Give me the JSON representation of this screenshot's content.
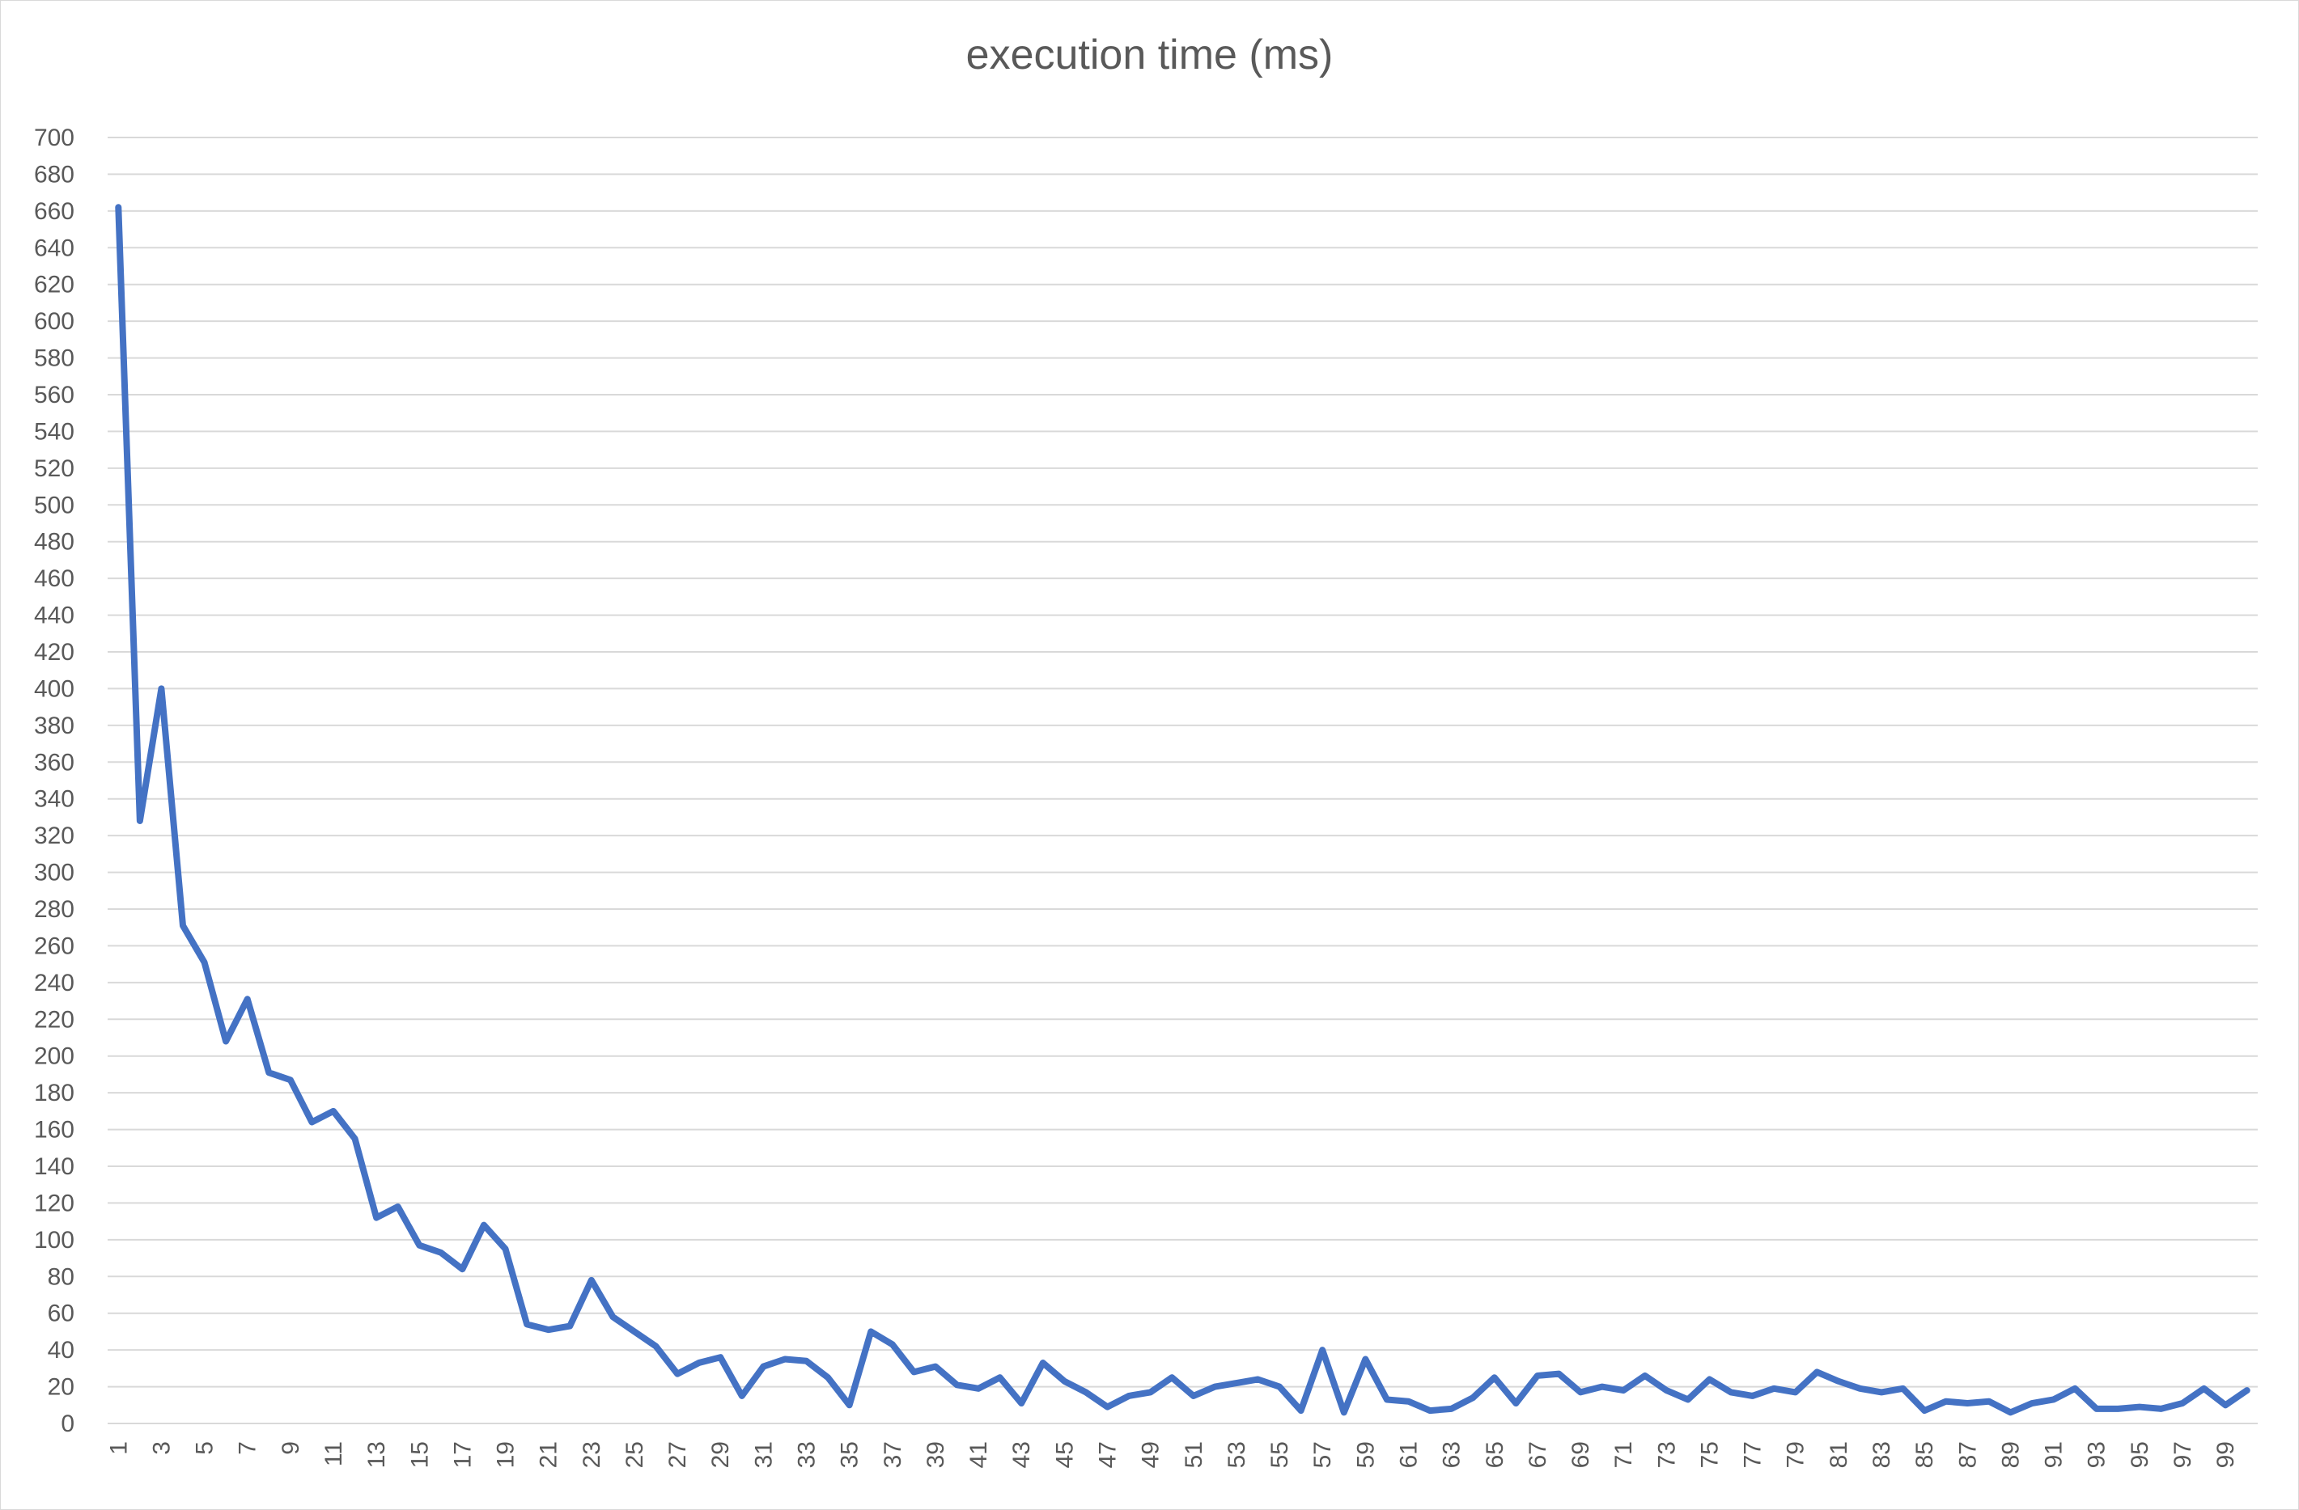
{
  "chart_data": {
    "type": "line",
    "title": "execution time (ms)",
    "xlabel": "",
    "ylabel": "",
    "ylim": [
      0,
      700
    ],
    "y_tick_step": 20,
    "x": [
      1,
      2,
      3,
      4,
      5,
      6,
      7,
      8,
      9,
      10,
      11,
      12,
      13,
      14,
      15,
      16,
      17,
      18,
      19,
      20,
      21,
      22,
      23,
      24,
      25,
      26,
      27,
      28,
      29,
      30,
      31,
      32,
      33,
      34,
      35,
      36,
      37,
      38,
      39,
      40,
      41,
      42,
      43,
      44,
      45,
      46,
      47,
      48,
      49,
      50,
      51,
      52,
      53,
      54,
      55,
      56,
      57,
      58,
      59,
      60,
      61,
      62,
      63,
      64,
      65,
      66,
      67,
      68,
      69,
      70,
      71,
      72,
      73,
      74,
      75,
      76,
      77,
      78,
      79,
      80,
      81,
      82,
      83,
      84,
      85,
      86,
      87,
      88,
      89,
      90,
      91,
      92,
      93,
      94,
      95,
      96,
      97,
      98,
      99,
      100
    ],
    "x_tick_labels": [
      "1",
      "3",
      "5",
      "7",
      "9",
      "11",
      "13",
      "15",
      "17",
      "19",
      "21",
      "23",
      "25",
      "27",
      "29",
      "31",
      "33",
      "35",
      "37",
      "39",
      "41",
      "43",
      "45",
      "47",
      "49",
      "51",
      "53",
      "55",
      "57",
      "59",
      "61",
      "63",
      "65",
      "67",
      "69",
      "71",
      "73",
      "75",
      "77",
      "79",
      "81",
      "83",
      "85",
      "87",
      "89",
      "91",
      "93",
      "95",
      "97",
      "99"
    ],
    "grid": true,
    "legend": "none",
    "series": [
      {
        "color": "#4472c4",
        "values": [
          662,
          328,
          400,
          271,
          251,
          208,
          231,
          191,
          187,
          164,
          170,
          155,
          112,
          118,
          97,
          93,
          84,
          108,
          95,
          54,
          51,
          53,
          78,
          58,
          50,
          42,
          27,
          33,
          36,
          15,
          31,
          35,
          34,
          25,
          10,
          50,
          43,
          28,
          31,
          21,
          19,
          25,
          11,
          33,
          23,
          17,
          9,
          15,
          17,
          25,
          15,
          20,
          22,
          24,
          20,
          7,
          40,
          6,
          35,
          13,
          12,
          7,
          8,
          14,
          25,
          11,
          26,
          27,
          17,
          20,
          18,
          26,
          18,
          13,
          24,
          17,
          15,
          19,
          17,
          28,
          23,
          19,
          17,
          19,
          7,
          12,
          11,
          12,
          6,
          11,
          13,
          19,
          8,
          8,
          9,
          8,
          11,
          19,
          10,
          18
        ]
      }
    ]
  }
}
